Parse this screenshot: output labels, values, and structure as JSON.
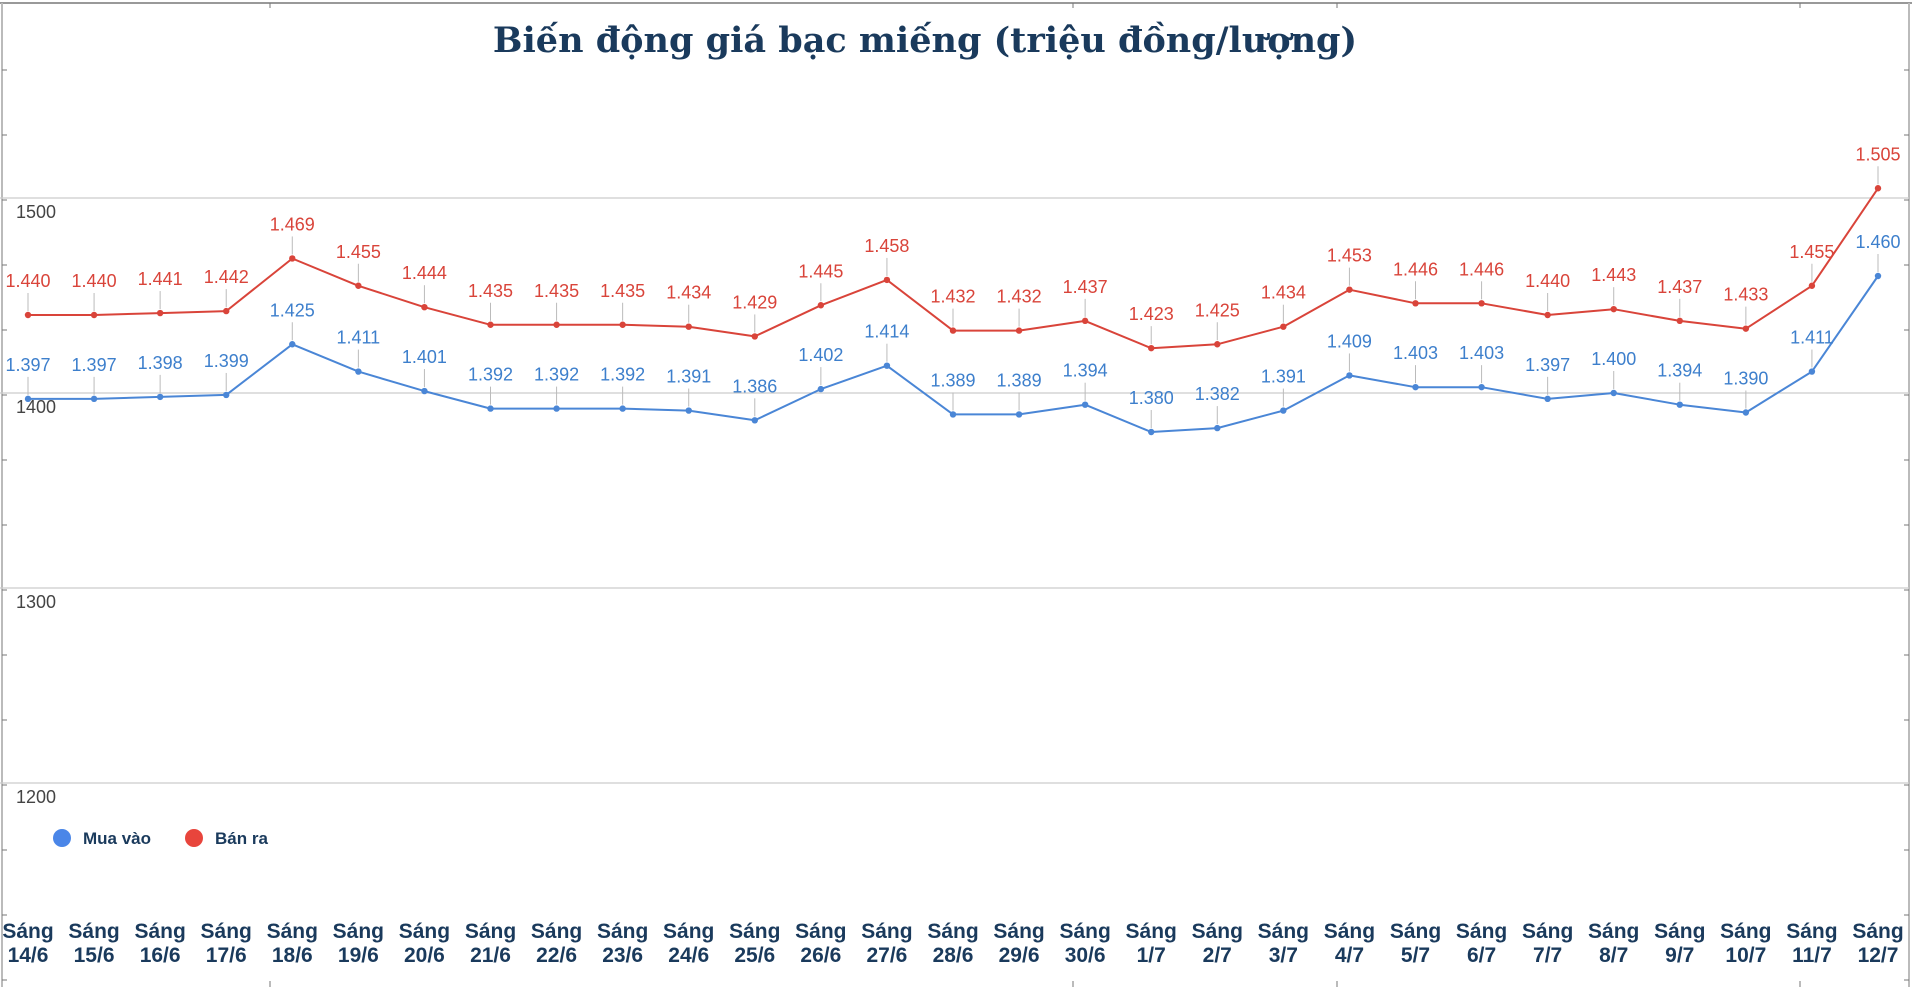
{
  "chart_data": {
    "type": "line",
    "title": "Biến động giá bạc miếng (triệu đồng/lượng)",
    "xlabel": "",
    "ylabel": "",
    "ylim": [
      1150,
      1600
    ],
    "yticks": [
      1200,
      1300,
      1400,
      1500
    ],
    "ytick_labels": [
      "1200",
      "1300",
      "1400",
      "1500"
    ],
    "grid": true,
    "legend_position": "bottom-left",
    "categories": [
      [
        "Sáng",
        "14/6"
      ],
      [
        "Sáng",
        "15/6"
      ],
      [
        "Sáng",
        "16/6"
      ],
      [
        "Sáng",
        "17/6"
      ],
      [
        "Sáng",
        "18/6"
      ],
      [
        "Sáng",
        "19/6"
      ],
      [
        "Sáng",
        "20/6"
      ],
      [
        "Sáng",
        "21/6"
      ],
      [
        "Sáng",
        "22/6"
      ],
      [
        "Sáng",
        "23/6"
      ],
      [
        "Sáng",
        "24/6"
      ],
      [
        "Sáng",
        "25/6"
      ],
      [
        "Sáng",
        "26/6"
      ],
      [
        "Sáng",
        "27/6"
      ],
      [
        "Sáng",
        "28/6"
      ],
      [
        "Sáng",
        "29/6"
      ],
      [
        "Sáng",
        "30/6"
      ],
      [
        "Sáng",
        "1/7"
      ],
      [
        "Sáng",
        "2/7"
      ],
      [
        "Sáng",
        "3/7"
      ],
      [
        "Sáng",
        "4/7"
      ],
      [
        "Sáng",
        "5/7"
      ],
      [
        "Sáng",
        "6/7"
      ],
      [
        "Sáng",
        "7/7"
      ],
      [
        "Sáng",
        "8/7"
      ],
      [
        "Sáng",
        "9/7"
      ],
      [
        "Sáng",
        "10/7"
      ],
      [
        "Sáng",
        "11/7"
      ],
      [
        "Sáng",
        "12/7"
      ]
    ],
    "series": [
      {
        "name": "Mua vào",
        "color": "#4a86d6",
        "label_color": "#3d7fcc",
        "values": [
          1397,
          1397,
          1398,
          1399,
          1425,
          1411,
          1401,
          1392,
          1392,
          1392,
          1391,
          1386,
          1402,
          1414,
          1389,
          1389,
          1394,
          1380,
          1382,
          1391,
          1409,
          1403,
          1403,
          1397,
          1400,
          1394,
          1390,
          1411,
          1460
        ],
        "labels": [
          "1.397",
          "1.397",
          "1.398",
          "1.399",
          "1.425",
          "1.411",
          "1.401",
          "1.392",
          "1.392",
          "1.392",
          "1.391",
          "1.386",
          "1.402",
          "1.414",
          "1.389",
          "1.389",
          "1.394",
          "1.380",
          "1.382",
          "1.391",
          "1.409",
          "1.403",
          "1.403",
          "1.397",
          "1.400",
          "1.394",
          "1.390",
          "1.411",
          "1.460"
        ]
      },
      {
        "name": "Bán ra",
        "color": "#d9443a",
        "label_color": "#d9443a",
        "values": [
          1440,
          1440,
          1441,
          1442,
          1469,
          1455,
          1444,
          1435,
          1435,
          1435,
          1434,
          1429,
          1445,
          1458,
          1432,
          1432,
          1437,
          1423,
          1425,
          1434,
          1453,
          1446,
          1446,
          1440,
          1443,
          1437,
          1433,
          1455,
          1505
        ],
        "labels": [
          "1.440",
          "1.440",
          "1.441",
          "1.442",
          "1.469",
          "1.455",
          "1.444",
          "1.435",
          "1.435",
          "1.435",
          "1.434",
          "1.429",
          "1.445",
          "1.458",
          "1.432",
          "1.432",
          "1.437",
          "1.423",
          "1.425",
          "1.434",
          "1.453",
          "1.446",
          "1.446",
          "1.440",
          "1.443",
          "1.437",
          "1.433",
          "1.455",
          "1.505"
        ]
      }
    ]
  },
  "colors": {
    "title": "#1a3a5c",
    "grid": "#cccccc",
    "background": "#ffffff"
  }
}
